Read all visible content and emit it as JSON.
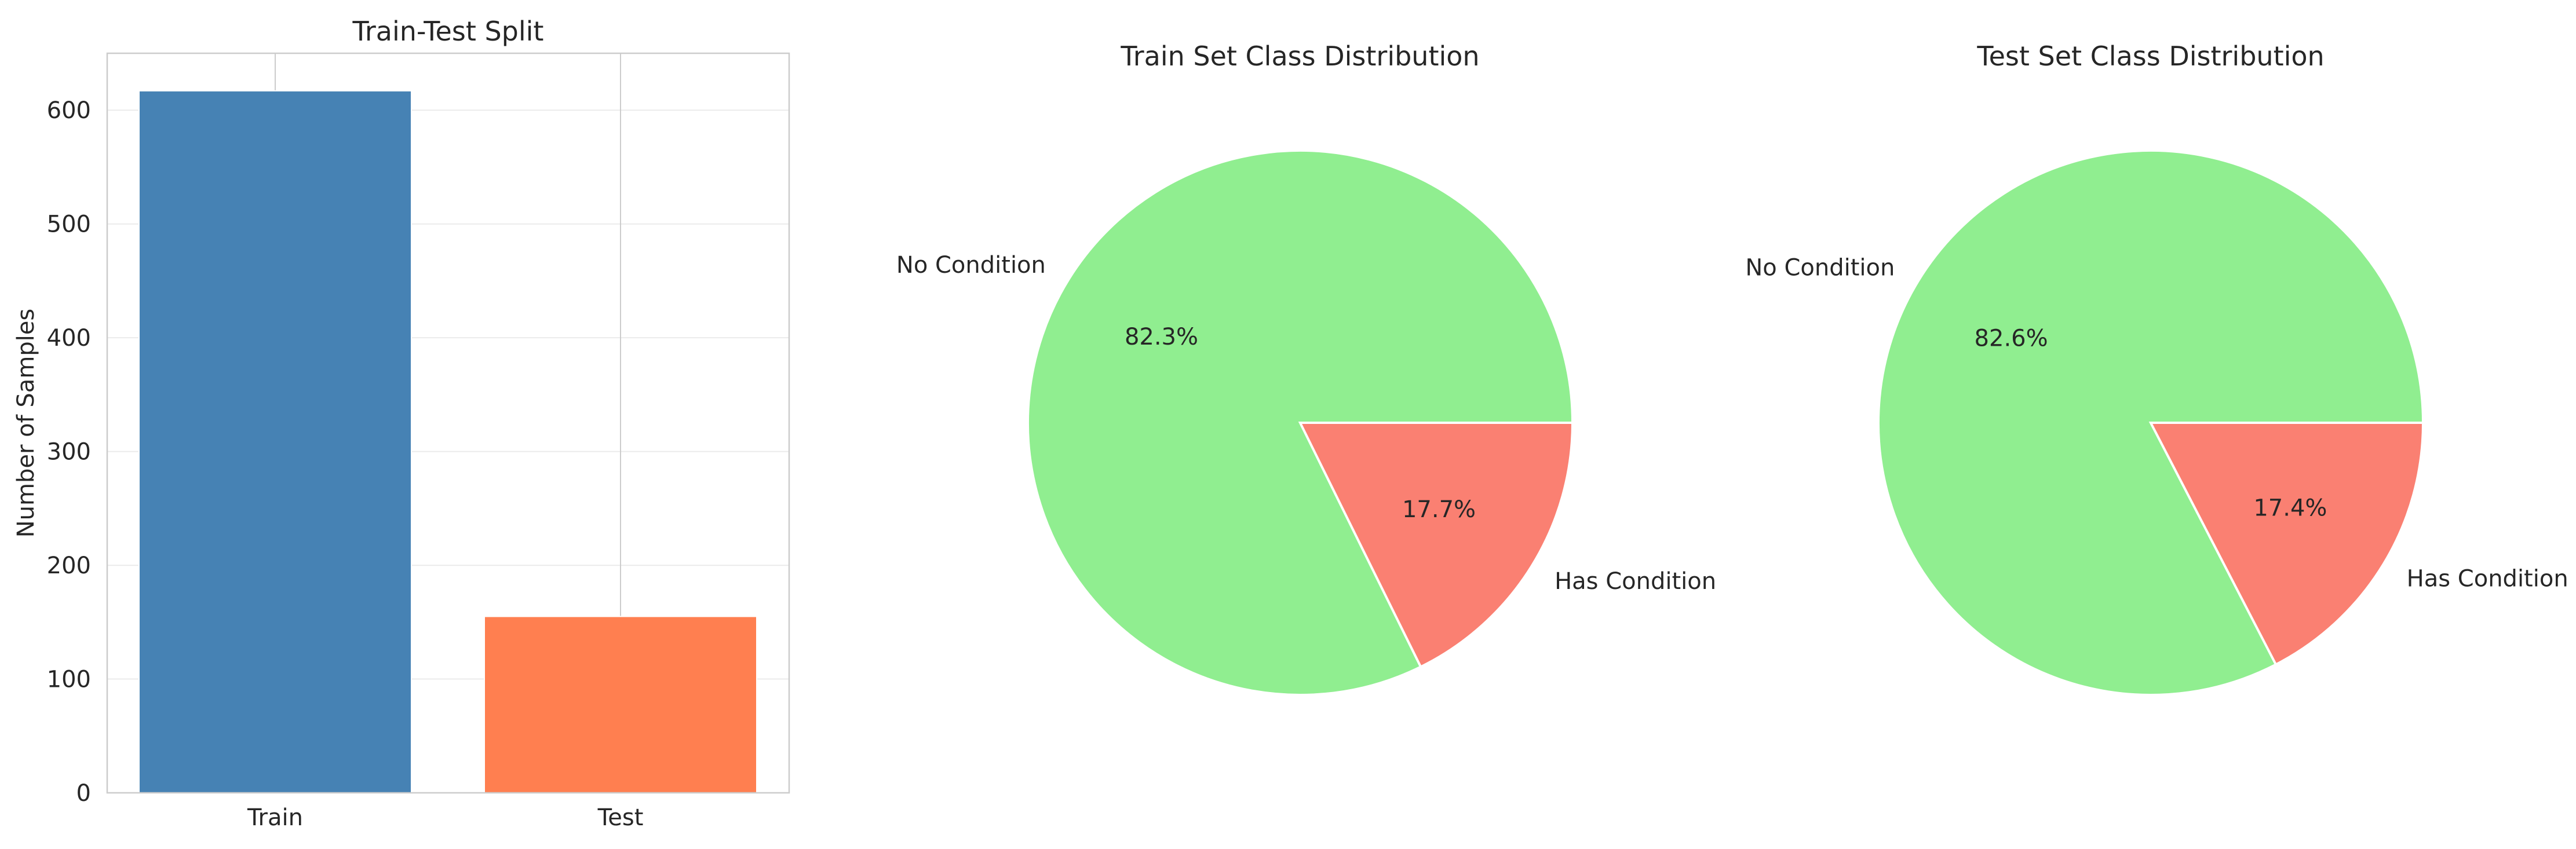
{
  "chart_data": [
    {
      "type": "bar",
      "title": "Train-Test Split",
      "categories": [
        "Train",
        "Test"
      ],
      "values": [
        617,
        155
      ],
      "colors": [
        "#4682b4",
        "#ff7f50"
      ],
      "xlabel": "",
      "ylabel": "Number of Samples",
      "ylim": [
        0,
        650
      ],
      "yticks": [
        0,
        100,
        200,
        300,
        400,
        500,
        600
      ],
      "ytick_labels": [
        "0",
        "100",
        "200",
        "300",
        "400",
        "500",
        "600"
      ],
      "grid": true
    },
    {
      "type": "pie",
      "title": "Train Set Class Distribution",
      "labels": [
        "No Condition",
        "Has Condition"
      ],
      "values": [
        82.3,
        17.7
      ],
      "pct_labels": [
        "82.3%",
        "17.7%"
      ],
      "colors": [
        "#90ee90",
        "#fa8072"
      ]
    },
    {
      "type": "pie",
      "title": "Test Set Class Distribution",
      "labels": [
        "No Condition",
        "Has Condition"
      ],
      "values": [
        82.6,
        17.4
      ],
      "pct_labels": [
        "82.6%",
        "17.4%"
      ],
      "colors": [
        "#90ee90",
        "#fa8072"
      ]
    }
  ]
}
